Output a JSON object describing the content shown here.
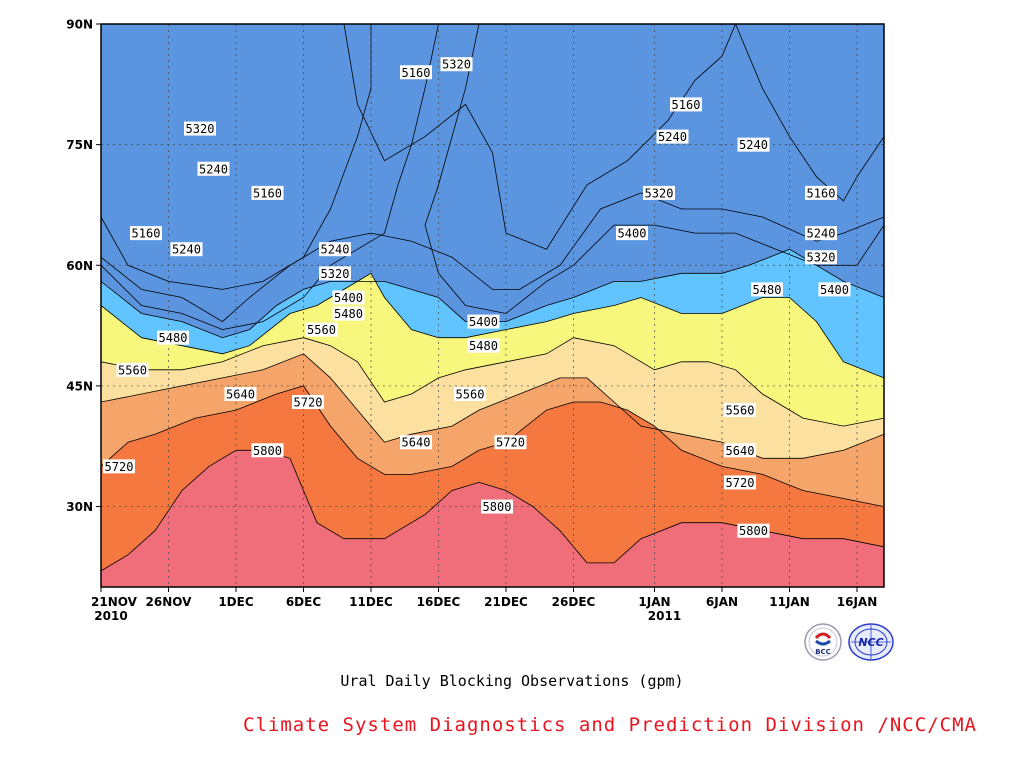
{
  "chart_data": {
    "type": "heatmap",
    "title": "Ural Daily Blocking Observations (gpm)",
    "x_ticks": [
      {
        "label": "21NOV",
        "sub": "2010"
      },
      {
        "label": "26NOV",
        "sub": ""
      },
      {
        "label": "1DEC",
        "sub": ""
      },
      {
        "label": "6DEC",
        "sub": ""
      },
      {
        "label": "11DEC",
        "sub": ""
      },
      {
        "label": "16DEC",
        "sub": ""
      },
      {
        "label": "21DEC",
        "sub": ""
      },
      {
        "label": "26DEC",
        "sub": ""
      },
      {
        "label": "1JAN",
        "sub": "2011"
      },
      {
        "label": "6JAN",
        "sub": ""
      },
      {
        "label": "11JAN",
        "sub": ""
      },
      {
        "label": "16JAN",
        "sub": ""
      }
    ],
    "x_tick_days": [
      0,
      5,
      10,
      15,
      20,
      25,
      30,
      35,
      41,
      46,
      51,
      56
    ],
    "x_range_days": [
      0,
      58
    ],
    "y_ticks": [
      "30N",
      "45N",
      "60N",
      "75N",
      "90N"
    ],
    "y_tick_values": [
      30,
      45,
      60,
      75,
      90
    ],
    "y_range": [
      20,
      90
    ],
    "contour_levels": [
      5160,
      5240,
      5320,
      5400,
      5480,
      5560,
      5640,
      5720,
      5800
    ],
    "colors": [
      "#0d1070",
      "#1a1ae6",
      "#4d4dee",
      "#5b95e0",
      "#62c4ff",
      "#f7f77d",
      "#fbe0a0",
      "#f5a56a",
      "#f57840",
      "#f06e7a"
    ],
    "boundaries": [
      {
        "level": 5160,
        "points": [
          [
            0,
            66
          ],
          [
            2,
            60
          ],
          [
            5,
            58
          ],
          [
            9,
            57
          ],
          [
            12,
            58
          ],
          [
            15,
            61
          ],
          [
            17,
            67
          ],
          [
            19,
            76
          ],
          [
            20,
            82
          ],
          [
            20,
            90
          ]
        ]
      },
      {
        "level": 5160,
        "points": [
          [
            18,
            90
          ],
          [
            19,
            80
          ],
          [
            21,
            73
          ],
          [
            24,
            76
          ],
          [
            27,
            80
          ],
          [
            29,
            74
          ],
          [
            30,
            64
          ],
          [
            33,
            62
          ],
          [
            36,
            70
          ],
          [
            39,
            73
          ],
          [
            42,
            78
          ],
          [
            44,
            83
          ],
          [
            46,
            86
          ],
          [
            47,
            90
          ]
        ]
      },
      {
        "level": 5160,
        "points": [
          [
            47,
            90
          ],
          [
            49,
            82
          ],
          [
            51,
            76
          ],
          [
            53,
            71
          ],
          [
            55,
            68
          ],
          [
            56,
            71
          ],
          [
            58,
            76
          ]
        ]
      },
      {
        "level": 5240,
        "points": [
          [
            0,
            61
          ],
          [
            3,
            57
          ],
          [
            6,
            56
          ],
          [
            9,
            53
          ],
          [
            11,
            56
          ],
          [
            14,
            60
          ],
          [
            17,
            63
          ],
          [
            20,
            64
          ],
          [
            23,
            63
          ],
          [
            26,
            61
          ],
          [
            29,
            57
          ],
          [
            31,
            57
          ],
          [
            34,
            60
          ],
          [
            37,
            67
          ],
          [
            40,
            69
          ],
          [
            43,
            67
          ],
          [
            46,
            67
          ],
          [
            49,
            66
          ],
          [
            53,
            63
          ],
          [
            55,
            64
          ],
          [
            58,
            66
          ]
        ]
      },
      {
        "level": 5320,
        "points": [
          [
            0,
            60
          ],
          [
            3,
            55
          ],
          [
            6,
            54
          ],
          [
            9,
            52
          ],
          [
            12,
            53
          ],
          [
            15,
            56
          ],
          [
            17,
            60
          ],
          [
            19,
            62
          ],
          [
            21,
            64
          ],
          [
            22,
            70
          ],
          [
            23,
            75
          ],
          [
            24,
            82
          ],
          [
            25,
            90
          ]
        ]
      },
      {
        "level": 5320,
        "points": [
          [
            28,
            90
          ],
          [
            27,
            82
          ],
          [
            26,
            76
          ],
          [
            25,
            70
          ],
          [
            24,
            65
          ],
          [
            25,
            59
          ],
          [
            27,
            55
          ],
          [
            30,
            54
          ],
          [
            33,
            58
          ],
          [
            35,
            60
          ],
          [
            38,
            65
          ],
          [
            41,
            65
          ],
          [
            44,
            64
          ],
          [
            47,
            64
          ],
          [
            50,
            62
          ],
          [
            53,
            60
          ],
          [
            56,
            60
          ],
          [
            58,
            65
          ]
        ]
      },
      {
        "level": 5400,
        "points": [
          [
            0,
            58
          ],
          [
            3,
            54
          ],
          [
            6,
            53
          ],
          [
            9,
            51
          ],
          [
            11,
            52
          ],
          [
            13,
            55
          ],
          [
            15,
            57
          ],
          [
            17,
            58
          ],
          [
            19,
            58
          ],
          [
            21,
            58
          ],
          [
            23,
            57
          ],
          [
            25,
            56
          ],
          [
            27,
            53
          ],
          [
            30,
            53
          ],
          [
            33,
            55
          ],
          [
            35,
            56
          ],
          [
            38,
            58
          ],
          [
            40,
            58
          ],
          [
            43,
            59
          ],
          [
            46,
            59
          ],
          [
            48,
            60
          ],
          [
            51,
            62
          ],
          [
            53,
            60
          ],
          [
            55,
            58
          ],
          [
            58,
            56
          ]
        ]
      },
      {
        "level": 5480,
        "points": [
          [
            0,
            55
          ],
          [
            3,
            51
          ],
          [
            6,
            50
          ],
          [
            9,
            49
          ],
          [
            11,
            50
          ],
          [
            14,
            54
          ],
          [
            16,
            55
          ],
          [
            18,
            57
          ],
          [
            20,
            59
          ],
          [
            21,
            56
          ],
          [
            23,
            52
          ],
          [
            25,
            51
          ],
          [
            27,
            51
          ],
          [
            30,
            52
          ],
          [
            33,
            53
          ],
          [
            35,
            54
          ],
          [
            38,
            55
          ],
          [
            40,
            56
          ],
          [
            43,
            54
          ],
          [
            46,
            54
          ],
          [
            49,
            56
          ],
          [
            51,
            56
          ],
          [
            53,
            53
          ],
          [
            55,
            48
          ],
          [
            58,
            46
          ]
        ]
      },
      {
        "level": 5560,
        "points": [
          [
            0,
            48
          ],
          [
            3,
            47
          ],
          [
            6,
            47
          ],
          [
            9,
            48
          ],
          [
            12,
            50
          ],
          [
            15,
            51
          ],
          [
            17,
            50
          ],
          [
            19,
            48
          ],
          [
            21,
            43
          ],
          [
            23,
            44
          ],
          [
            25,
            46
          ],
          [
            27,
            47
          ],
          [
            30,
            48
          ],
          [
            33,
            49
          ],
          [
            35,
            51
          ],
          [
            38,
            50
          ],
          [
            41,
            47
          ],
          [
            43,
            48
          ],
          [
            45,
            48
          ],
          [
            47,
            47
          ],
          [
            49,
            44
          ],
          [
            52,
            41
          ],
          [
            55,
            40
          ],
          [
            58,
            41
          ]
        ]
      },
      {
        "level": 5640,
        "points": [
          [
            0,
            43
          ],
          [
            3,
            44
          ],
          [
            6,
            45
          ],
          [
            9,
            46
          ],
          [
            12,
            47
          ],
          [
            15,
            49
          ],
          [
            17,
            46
          ],
          [
            19,
            42
          ],
          [
            21,
            38
          ],
          [
            23,
            39
          ],
          [
            26,
            40
          ],
          [
            28,
            42
          ],
          [
            31,
            44
          ],
          [
            34,
            46
          ],
          [
            36,
            46
          ],
          [
            38,
            43
          ],
          [
            40,
            40
          ],
          [
            43,
            39
          ],
          [
            46,
            38
          ],
          [
            49,
            36
          ],
          [
            52,
            36
          ],
          [
            55,
            37
          ],
          [
            58,
            39
          ]
        ]
      },
      {
        "level": 5720,
        "points": [
          [
            0,
            35
          ],
          [
            2,
            38
          ],
          [
            4,
            39
          ],
          [
            7,
            41
          ],
          [
            10,
            42
          ],
          [
            13,
            44
          ],
          [
            15,
            45
          ],
          [
            17,
            40
          ],
          [
            19,
            36
          ],
          [
            21,
            34
          ],
          [
            23,
            34
          ],
          [
            26,
            35
          ],
          [
            28,
            37
          ],
          [
            30,
            38
          ],
          [
            33,
            42
          ],
          [
            35,
            43
          ],
          [
            37,
            43
          ],
          [
            39,
            42
          ],
          [
            41,
            40
          ],
          [
            43,
            37
          ],
          [
            46,
            35
          ],
          [
            49,
            34
          ],
          [
            52,
            32
          ],
          [
            55,
            31
          ],
          [
            58,
            30
          ]
        ]
      },
      {
        "level": 5800,
        "points": [
          [
            0,
            22
          ],
          [
            2,
            24
          ],
          [
            4,
            27
          ],
          [
            6,
            32
          ],
          [
            8,
            35
          ],
          [
            10,
            37
          ],
          [
            12,
            37
          ],
          [
            14,
            36
          ],
          [
            16,
            28
          ],
          [
            18,
            26
          ],
          [
            21,
            26
          ],
          [
            24,
            29
          ],
          [
            26,
            32
          ],
          [
            28,
            33
          ],
          [
            30,
            32
          ],
          [
            32,
            30
          ],
          [
            34,
            27
          ],
          [
            36,
            23
          ],
          [
            38,
            23
          ],
          [
            40,
            26
          ],
          [
            43,
            28
          ],
          [
            46,
            28
          ],
          [
            49,
            27
          ],
          [
            52,
            26
          ],
          [
            55,
            26
          ],
          [
            58,
            25
          ]
        ]
      }
    ],
    "contour_labels": [
      {
        "text": "5320",
        "x": 6,
        "y": 77
      },
      {
        "text": "5240",
        "x": 7,
        "y": 72
      },
      {
        "text": "5160",
        "x": 11,
        "y": 69
      },
      {
        "text": "5160",
        "x": 2,
        "y": 64
      },
      {
        "text": "5240",
        "x": 5,
        "y": 62
      },
      {
        "text": "5160",
        "x": 22,
        "y": 84
      },
      {
        "text": "5320",
        "x": 25,
        "y": 85
      },
      {
        "text": "5160",
        "x": 42,
        "y": 80
      },
      {
        "text": "5240",
        "x": 41,
        "y": 76
      },
      {
        "text": "5240",
        "x": 47,
        "y": 75
      },
      {
        "text": "5320",
        "x": 40,
        "y": 69
      },
      {
        "text": "5400",
        "x": 38,
        "y": 64
      },
      {
        "text": "5160",
        "x": 52,
        "y": 69
      },
      {
        "text": "5240",
        "x": 52,
        "y": 64
      },
      {
        "text": "5320",
        "x": 52,
        "y": 61
      },
      {
        "text": "5400",
        "x": 53,
        "y": 57
      },
      {
        "text": "5480",
        "x": 48,
        "y": 57
      },
      {
        "text": "5240",
        "x": 16,
        "y": 62
      },
      {
        "text": "5320",
        "x": 16,
        "y": 59
      },
      {
        "text": "5400",
        "x": 17,
        "y": 56
      },
      {
        "text": "5480",
        "x": 17,
        "y": 54
      },
      {
        "text": "5560",
        "x": 15,
        "y": 52
      },
      {
        "text": "5480",
        "x": 4,
        "y": 51
      },
      {
        "text": "5560",
        "x": 1,
        "y": 47
      },
      {
        "text": "5640",
        "x": 9,
        "y": 44
      },
      {
        "text": "5720",
        "x": 14,
        "y": 43
      },
      {
        "text": "5800",
        "x": 11,
        "y": 37
      },
      {
        "text": "5720",
        "x": 0,
        "y": 35
      },
      {
        "text": "5400",
        "x": 27,
        "y": 53
      },
      {
        "text": "5480",
        "x": 27,
        "y": 50
      },
      {
        "text": "5560",
        "x": 26,
        "y": 44
      },
      {
        "text": "5640",
        "x": 22,
        "y": 38
      },
      {
        "text": "5720",
        "x": 29,
        "y": 38
      },
      {
        "text": "5800",
        "x": 28,
        "y": 30
      },
      {
        "text": "5560",
        "x": 46,
        "y": 42
      },
      {
        "text": "5640",
        "x": 46,
        "y": 37
      },
      {
        "text": "5720",
        "x": 46,
        "y": 33
      },
      {
        "text": "5800",
        "x": 47,
        "y": 27
      }
    ]
  },
  "caption": "Ural Daily Blocking Observations (gpm)",
  "credit": "Climate System Diagnostics and Prediction Division /NCC/CMA",
  "logos": [
    {
      "name": "bcc-logo-icon",
      "text": "BCC"
    },
    {
      "name": "ncc-logo-icon",
      "text": "NCC"
    }
  ]
}
